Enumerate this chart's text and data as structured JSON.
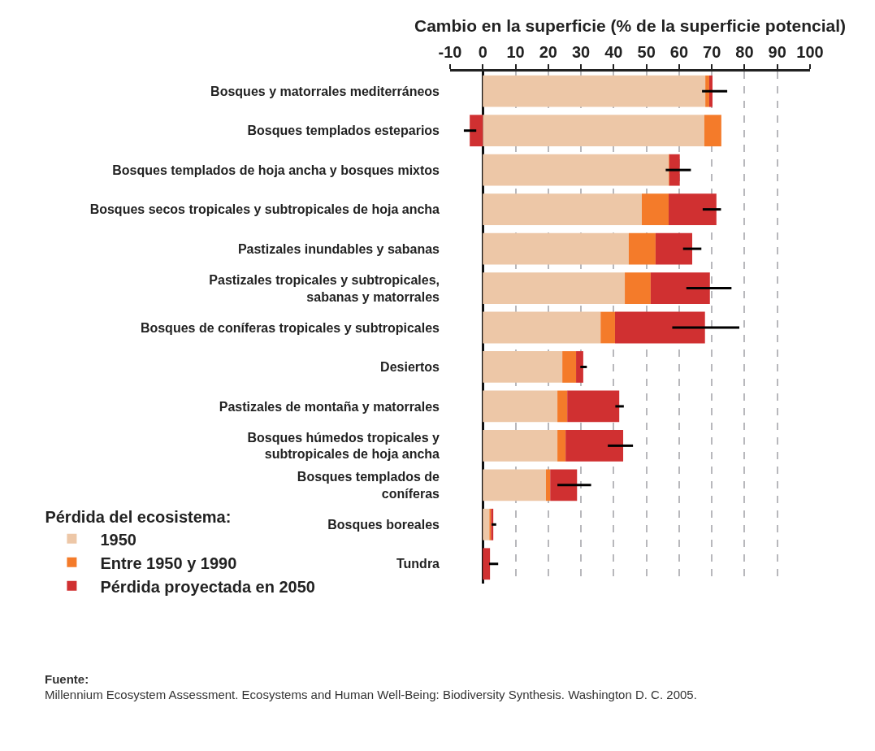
{
  "chart_data": {
    "type": "bar",
    "orientation": "horizontal",
    "stacked": true,
    "xlabel": "Cambio en la superficie (% de la superficie potencial)",
    "legend_title": "Pérdida del ecosistema:",
    "categories": [
      "Bosques y matorrales mediterráneos",
      "Bosques templados esteparios",
      "Bosques templados de hoja ancha y bosques mixtos",
      "Bosques secos tropicales y subtropicales de hoja ancha",
      "Pastizales inundables y sabanas",
      "Pastizales tropicales y subtropicales,\nsabanas y matorrales",
      "Bosques de coníferas tropicales y subtropicales",
      "Desiertos",
      "Pastizales de montaña y matorrales",
      "Bosques húmedos tropicales y\nsubtropicales de hoja ancha",
      "Bosques templados de\nconíferas",
      "Bosques boreales",
      "Tundra"
    ],
    "series": [
      {
        "name": "1950",
        "color": "#edc7a7",
        "values": [
          68,
          67.7,
          56.8,
          48.6,
          44.6,
          43.4,
          36,
          24.3,
          22.8,
          22.8,
          19.3,
          2,
          0
        ]
      },
      {
        "name": "Entre 1950 y 1990",
        "color": "#f47b2a",
        "values": [
          1.2,
          5.2,
          0.2,
          8.2,
          8.2,
          7.9,
          4.4,
          4.2,
          3,
          2.5,
          1.3,
          0.5,
          0
        ]
      },
      {
        "name": "Pérdida proyectada en 2050",
        "color": "#d03031",
        "values": [
          1,
          -4,
          3.2,
          14.6,
          11.2,
          18.1,
          27.5,
          2.2,
          15.9,
          17.6,
          8.2,
          0.7,
          2.2
        ],
        "errors": [
          [
            67,
            74.7
          ],
          [
            -5.8,
            -2
          ],
          [
            55.9,
            63.6
          ],
          [
            67.2,
            72.8
          ],
          [
            61.2,
            66.8
          ],
          [
            62.2,
            76
          ],
          [
            57.9,
            78.4
          ],
          [
            29.8,
            31.8
          ],
          [
            40.5,
            43.1
          ],
          [
            38.2,
            45.9
          ],
          [
            22.8,
            33.1
          ],
          [
            2.7,
            4.1
          ],
          [
            1.9,
            4.7
          ]
        ]
      }
    ],
    "xlim": [
      -10,
      100
    ],
    "xticks": [
      -10,
      0,
      10,
      20,
      30,
      40,
      50,
      60,
      70,
      80,
      90,
      100
    ],
    "grid": "x",
    "legend": "bottom left",
    "annotations": [
      "Fuente:",
      "Millennium Ecosystem Assessment. Ecosystems and Human Well-Being: Biodiversity Synthesis. Washington D. C. 2005."
    ]
  }
}
